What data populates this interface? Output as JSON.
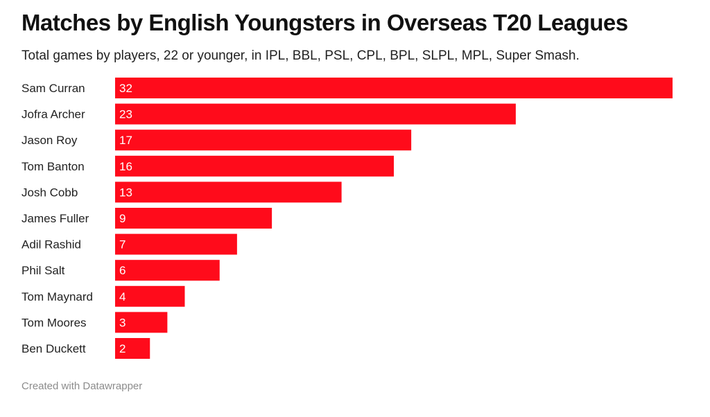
{
  "chart_data": {
    "type": "bar",
    "orientation": "horizontal",
    "title": "Matches by English Youngsters in Overseas T20 Leagues",
    "subtitle": "Total games by players, 22 or younger, in IPL, BBL, PSL, CPL, BPL, SLPL, MPL, Super Smash.",
    "categories": [
      "Sam Curran",
      "Jofra Archer",
      "Jason Roy",
      "Tom Banton",
      "Josh Cobb",
      "James Fuller",
      "Adil Rashid",
      "Phil Salt",
      "Tom Maynard",
      "Tom Moores",
      "Ben Duckett"
    ],
    "values": [
      32,
      23,
      17,
      16,
      13,
      9,
      7,
      6,
      4,
      3,
      2
    ],
    "xlim": [
      0,
      32
    ],
    "grid": false,
    "legend": "none",
    "bar_color": "#ff0b1b",
    "data_labels": "inside-start"
  },
  "footer": "Created with Datawrapper"
}
